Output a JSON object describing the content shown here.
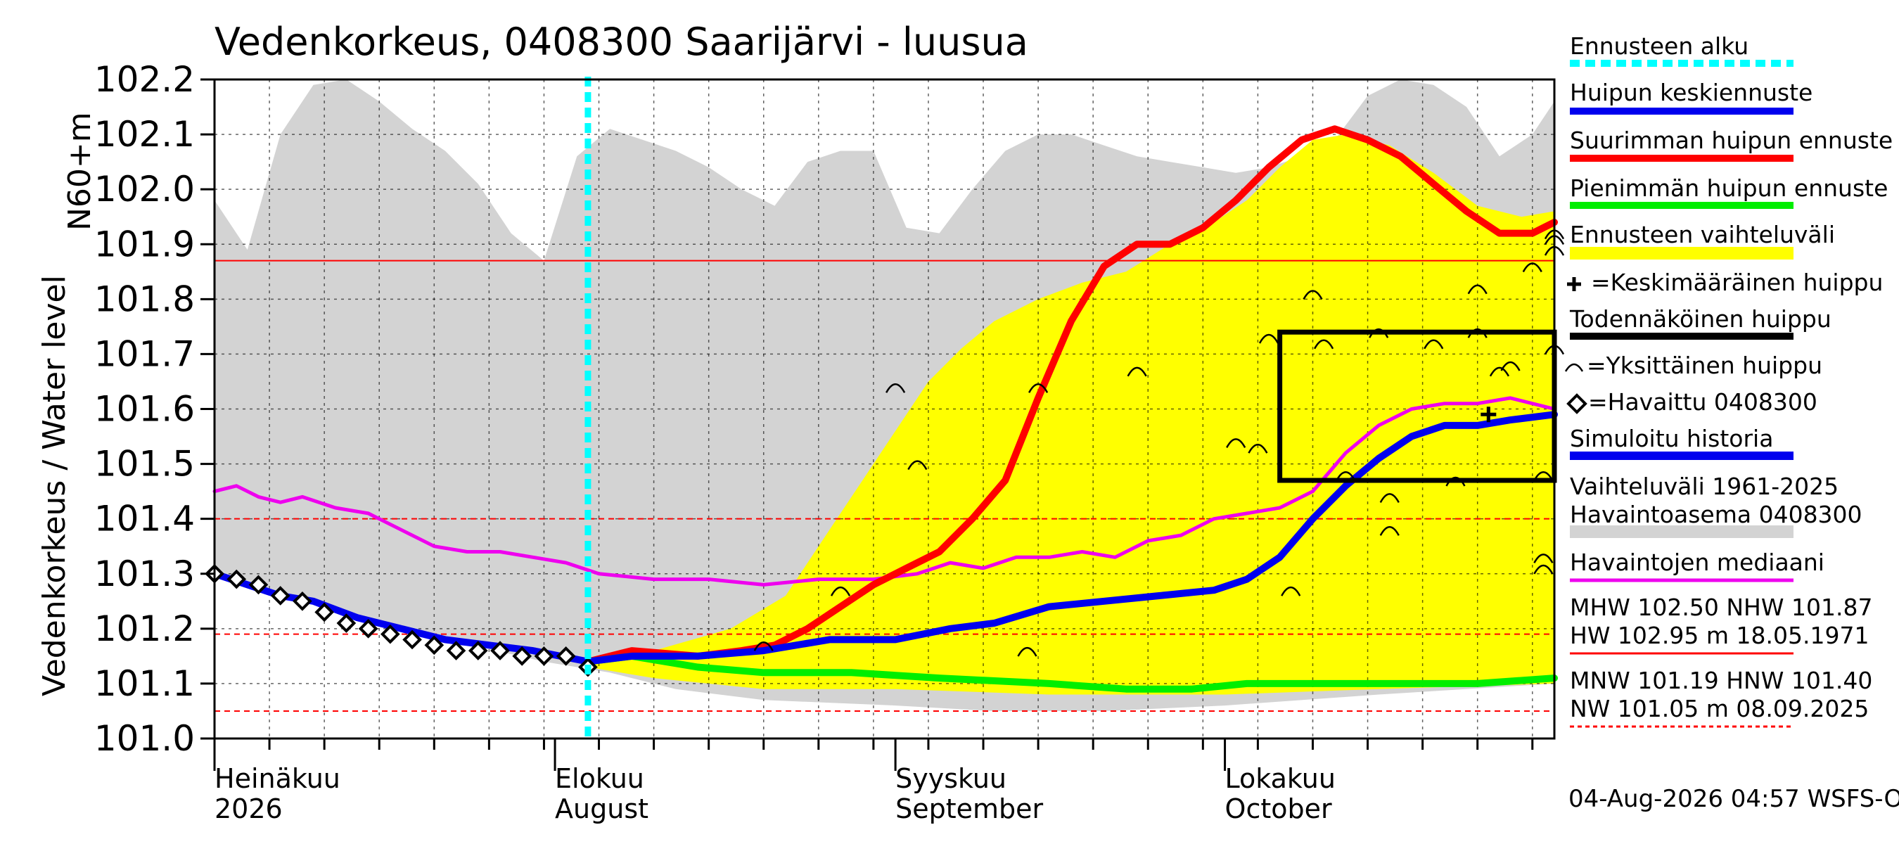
{
  "title": "Vedenkorkeus, 0408300 Saarijärvi - luusua",
  "y_axis_label_1": "N60+m",
  "y_axis_label_2": "Vedenkorkeus / Water level",
  "timestamp": "04-Aug-2026 04:57 WSFS-O",
  "legend": {
    "forecast_start": "Ennusteen alku",
    "peak_mean": "Huipun keskiennuste",
    "peak_max": "Suurimman huipun ennuste",
    "peak_min": "Pienimmän huipun ennuste",
    "forecast_range": "Ennusteen vaihteluväli",
    "mean_peak": "=Keskimääräinen huippu",
    "likely_peak": "Todennäköinen huippu",
    "single_peak": "=Yksittäinen huippu",
    "observed": "=Havaittu 0408300",
    "simulated": "Simuloitu historia",
    "range_1": "Vaihteluväli 1961-2025",
    "range_2": "Havaintoasema 0408300",
    "median": "Havaintojen mediaani",
    "mhw": "MHW 102.50 NHW 101.87",
    "hw": "HW 102.95 m 18.05.1971",
    "mnw": "MNW 101.19 HNW 101.40",
    "nw": "NW 101.05 m 08.09.2025"
  },
  "colors": {
    "forecast_start": "#00ffff",
    "peak_mean": "#0000ee",
    "peak_max": "#ff0000",
    "peak_min": "#00ee00",
    "forecast_range": "#ffff00",
    "historical_range": "#d3d3d3",
    "median": "#ee00ee",
    "threshold": "#ff0000"
  },
  "chart_data": {
    "type": "line",
    "ylim": [
      101.0,
      102.2
    ],
    "yticks": [
      "101.0",
      "101.1",
      "101.2",
      "101.3",
      "101.4",
      "101.5",
      "101.6",
      "101.7",
      "101.8",
      "101.9",
      "102.0",
      "102.1",
      "102.2"
    ],
    "x_start": "2026-07-01",
    "x_end": "2026-10-31",
    "forecast_start": "2026-08-04",
    "month_labels": [
      {
        "date": "2026-07-01",
        "fi": "Heinäkuu",
        "en": "2026"
      },
      {
        "date": "2026-08-01",
        "fi": "Elokuu",
        "en": "August"
      },
      {
        "date": "2026-09-01",
        "fi": "Syyskuu",
        "en": "September"
      },
      {
        "date": "2026-10-01",
        "fi": "Lokakuu",
        "en": "October"
      }
    ],
    "hlines": [
      {
        "y": 101.87,
        "style": "solid"
      },
      {
        "y": 101.4,
        "style": "dashed"
      },
      {
        "y": 101.19,
        "style": "dashed"
      },
      {
        "y": 101.05,
        "style": "dashed"
      }
    ],
    "historical_range": {
      "upper": [
        [
          "2026-07-01",
          101.98
        ],
        [
          "2026-07-04",
          101.89
        ],
        [
          "2026-07-07",
          102.1
        ],
        [
          "2026-07-10",
          102.19
        ],
        [
          "2026-07-13",
          102.2
        ],
        [
          "2026-07-16",
          102.16
        ],
        [
          "2026-07-19",
          102.11
        ],
        [
          "2026-07-22",
          102.07
        ],
        [
          "2026-07-25",
          102.01
        ],
        [
          "2026-07-28",
          101.92
        ],
        [
          "2026-07-31",
          101.87
        ],
        [
          "2026-08-03",
          102.06
        ],
        [
          "2026-08-06",
          102.11
        ],
        [
          "2026-08-09",
          102.09
        ],
        [
          "2026-08-12",
          102.07
        ],
        [
          "2026-08-15",
          102.04
        ],
        [
          "2026-08-18",
          102.0
        ],
        [
          "2026-08-21",
          101.97
        ],
        [
          "2026-08-24",
          102.05
        ],
        [
          "2026-08-27",
          102.07
        ],
        [
          "2026-08-30",
          102.07
        ],
        [
          "2026-09-02",
          101.93
        ],
        [
          "2026-09-05",
          101.92
        ],
        [
          "2026-09-08",
          102.0
        ],
        [
          "2026-09-11",
          102.07
        ],
        [
          "2026-09-14",
          102.1
        ],
        [
          "2026-09-17",
          102.1
        ],
        [
          "2026-09-20",
          102.08
        ],
        [
          "2026-09-23",
          102.06
        ],
        [
          "2026-09-26",
          102.05
        ],
        [
          "2026-09-29",
          102.04
        ],
        [
          "2026-10-02",
          102.03
        ],
        [
          "2026-10-05",
          102.04
        ],
        [
          "2026-10-08",
          102.06
        ],
        [
          "2026-10-11",
          102.09
        ],
        [
          "2026-10-14",
          102.17
        ],
        [
          "2026-10-17",
          102.2
        ],
        [
          "2026-10-20",
          102.19
        ],
        [
          "2026-10-23",
          102.15
        ],
        [
          "2026-10-26",
          102.06
        ],
        [
          "2026-10-29",
          102.1
        ],
        [
          "2026-10-31",
          102.16
        ]
      ],
      "lower": [
        [
          "2026-07-01",
          101.3
        ],
        [
          "2026-07-10",
          101.25
        ],
        [
          "2026-07-20",
          101.19
        ],
        [
          "2026-07-31",
          101.14
        ],
        [
          "2026-08-06",
          101.12
        ],
        [
          "2026-08-12",
          101.09
        ],
        [
          "2026-08-20",
          101.07
        ],
        [
          "2026-09-01",
          101.06
        ],
        [
          "2026-09-10",
          101.05
        ],
        [
          "2026-09-20",
          101.05
        ],
        [
          "2026-10-01",
          101.06
        ],
        [
          "2026-10-15",
          101.08
        ],
        [
          "2026-10-31",
          101.1
        ]
      ]
    },
    "forecast_range": {
      "upper": [
        [
          "2026-08-04",
          101.14
        ],
        [
          "2026-08-10",
          101.16
        ],
        [
          "2026-08-17",
          101.2
        ],
        [
          "2026-08-22",
          101.26
        ],
        [
          "2026-08-26",
          101.38
        ],
        [
          "2026-08-29",
          101.47
        ],
        [
          "2026-09-01",
          101.56
        ],
        [
          "2026-09-04",
          101.65
        ],
        [
          "2026-09-07",
          101.71
        ],
        [
          "2026-09-10",
          101.76
        ],
        [
          "2026-09-14",
          101.8
        ],
        [
          "2026-09-18",
          101.83
        ],
        [
          "2026-09-22",
          101.85
        ],
        [
          "2026-09-26",
          101.9
        ],
        [
          "2026-09-30",
          101.94
        ],
        [
          "2026-10-03",
          101.98
        ],
        [
          "2026-10-06",
          102.04
        ],
        [
          "2026-10-09",
          102.09
        ],
        [
          "2026-10-12",
          102.1
        ],
        [
          "2026-10-16",
          102.08
        ],
        [
          "2026-10-20",
          102.03
        ],
        [
          "2026-10-24",
          101.97
        ],
        [
          "2026-10-28",
          101.95
        ],
        [
          "2026-10-31",
          101.96
        ]
      ],
      "lower": [
        [
          "2026-08-04",
          101.13
        ],
        [
          "2026-08-10",
          101.11
        ],
        [
          "2026-08-20",
          101.09
        ],
        [
          "2026-09-01",
          101.09
        ],
        [
          "2026-09-15",
          101.08
        ],
        [
          "2026-10-01",
          101.08
        ],
        [
          "2026-10-15",
          101.09
        ],
        [
          "2026-10-31",
          101.1
        ]
      ]
    },
    "series": [
      {
        "name": "Havaintojen mediaani",
        "key": "median",
        "values": [
          [
            "2026-07-01",
            101.45
          ],
          [
            "2026-07-03",
            101.46
          ],
          [
            "2026-07-05",
            101.44
          ],
          [
            "2026-07-07",
            101.43
          ],
          [
            "2026-07-09",
            101.44
          ],
          [
            "2026-07-12",
            101.42
          ],
          [
            "2026-07-15",
            101.41
          ],
          [
            "2026-07-18",
            101.38
          ],
          [
            "2026-07-21",
            101.35
          ],
          [
            "2026-07-24",
            101.34
          ],
          [
            "2026-07-27",
            101.34
          ],
          [
            "2026-07-30",
            101.33
          ],
          [
            "2026-08-02",
            101.32
          ],
          [
            "2026-08-05",
            101.3
          ],
          [
            "2026-08-10",
            101.29
          ],
          [
            "2026-08-15",
            101.29
          ],
          [
            "2026-08-20",
            101.28
          ],
          [
            "2026-08-25",
            101.29
          ],
          [
            "2026-08-30",
            101.29
          ],
          [
            "2026-09-03",
            101.3
          ],
          [
            "2026-09-06",
            101.32
          ],
          [
            "2026-09-09",
            101.31
          ],
          [
            "2026-09-12",
            101.33
          ],
          [
            "2026-09-15",
            101.33
          ],
          [
            "2026-09-18",
            101.34
          ],
          [
            "2026-09-21",
            101.33
          ],
          [
            "2026-09-24",
            101.36
          ],
          [
            "2026-09-27",
            101.37
          ],
          [
            "2026-09-30",
            101.4
          ],
          [
            "2026-10-03",
            101.41
          ],
          [
            "2026-10-06",
            101.42
          ],
          [
            "2026-10-09",
            101.45
          ],
          [
            "2026-10-12",
            101.52
          ],
          [
            "2026-10-15",
            101.57
          ],
          [
            "2026-10-18",
            101.6
          ],
          [
            "2026-10-21",
            101.61
          ],
          [
            "2026-10-24",
            101.61
          ],
          [
            "2026-10-27",
            101.62
          ],
          [
            "2026-10-31",
            101.6
          ]
        ]
      },
      {
        "name": "Suurimman huipun ennuste",
        "key": "peak_max",
        "values": [
          [
            "2026-08-04",
            101.14
          ],
          [
            "2026-08-08",
            101.16
          ],
          [
            "2026-08-14",
            101.15
          ],
          [
            "2026-08-18",
            101.16
          ],
          [
            "2026-08-21",
            101.17
          ],
          [
            "2026-08-24",
            101.2
          ],
          [
            "2026-08-27",
            101.24
          ],
          [
            "2026-08-30",
            101.28
          ],
          [
            "2026-09-02",
            101.31
          ],
          [
            "2026-09-05",
            101.34
          ],
          [
            "2026-09-08",
            101.4
          ],
          [
            "2026-09-11",
            101.47
          ],
          [
            "2026-09-14",
            101.62
          ],
          [
            "2026-09-17",
            101.76
          ],
          [
            "2026-09-20",
            101.86
          ],
          [
            "2026-09-23",
            101.9
          ],
          [
            "2026-09-26",
            101.9
          ],
          [
            "2026-09-29",
            101.93
          ],
          [
            "2026-10-02",
            101.98
          ],
          [
            "2026-10-05",
            102.04
          ],
          [
            "2026-10-08",
            102.09
          ],
          [
            "2026-10-11",
            102.11
          ],
          [
            "2026-10-14",
            102.09
          ],
          [
            "2026-10-17",
            102.06
          ],
          [
            "2026-10-20",
            102.01
          ],
          [
            "2026-10-23",
            101.96
          ],
          [
            "2026-10-26",
            101.92
          ],
          [
            "2026-10-29",
            101.92
          ],
          [
            "2026-10-31",
            101.94
          ]
        ]
      },
      {
        "name": "Pienimmän huipun ennuste",
        "key": "peak_min",
        "values": [
          [
            "2026-08-04",
            101.14
          ],
          [
            "2026-08-08",
            101.15
          ],
          [
            "2026-08-14",
            101.13
          ],
          [
            "2026-08-20",
            101.12
          ],
          [
            "2026-08-28",
            101.12
          ],
          [
            "2026-09-05",
            101.11
          ],
          [
            "2026-09-15",
            101.1
          ],
          [
            "2026-09-22",
            101.09
          ],
          [
            "2026-09-28",
            101.09
          ],
          [
            "2026-10-03",
            101.1
          ],
          [
            "2026-10-10",
            101.1
          ],
          [
            "2026-10-17",
            101.1
          ],
          [
            "2026-10-24",
            101.1
          ],
          [
            "2026-10-31",
            101.11
          ]
        ]
      },
      {
        "name": "Huipun keskiennuste",
        "key": "peak_mean",
        "values": [
          [
            "2026-07-01",
            101.3
          ],
          [
            "2026-07-04",
            101.28
          ],
          [
            "2026-07-07",
            101.26
          ],
          [
            "2026-07-10",
            101.25
          ],
          [
            "2026-07-14",
            101.22
          ],
          [
            "2026-07-18",
            101.2
          ],
          [
            "2026-07-22",
            101.18
          ],
          [
            "2026-07-26",
            101.17
          ],
          [
            "2026-07-30",
            101.16
          ],
          [
            "2026-08-04",
            101.14
          ],
          [
            "2026-08-08",
            101.15
          ],
          [
            "2026-08-14",
            101.15
          ],
          [
            "2026-08-20",
            101.16
          ],
          [
            "2026-08-26",
            101.18
          ],
          [
            "2026-09-01",
            101.18
          ],
          [
            "2026-09-06",
            101.2
          ],
          [
            "2026-09-10",
            101.21
          ],
          [
            "2026-09-15",
            101.24
          ],
          [
            "2026-09-20",
            101.25
          ],
          [
            "2026-09-25",
            101.26
          ],
          [
            "2026-09-30",
            101.27
          ],
          [
            "2026-10-03",
            101.29
          ],
          [
            "2026-10-06",
            101.33
          ],
          [
            "2026-10-09",
            101.4
          ],
          [
            "2026-10-12",
            101.46
          ],
          [
            "2026-10-15",
            101.51
          ],
          [
            "2026-10-18",
            101.55
          ],
          [
            "2026-10-21",
            101.57
          ],
          [
            "2026-10-24",
            101.57
          ],
          [
            "2026-10-27",
            101.58
          ],
          [
            "2026-10-31",
            101.59
          ]
        ]
      }
    ],
    "observed": [
      [
        "2026-07-01",
        101.3
      ],
      [
        "2026-07-03",
        101.29
      ],
      [
        "2026-07-05",
        101.28
      ],
      [
        "2026-07-07",
        101.26
      ],
      [
        "2026-07-09",
        101.25
      ],
      [
        "2026-07-11",
        101.23
      ],
      [
        "2026-07-13",
        101.21
      ],
      [
        "2026-07-15",
        101.2
      ],
      [
        "2026-07-17",
        101.19
      ],
      [
        "2026-07-19",
        101.18
      ],
      [
        "2026-07-21",
        101.17
      ],
      [
        "2026-07-23",
        101.16
      ],
      [
        "2026-07-25",
        101.16
      ],
      [
        "2026-07-27",
        101.16
      ],
      [
        "2026-07-29",
        101.15
      ],
      [
        "2026-07-31",
        101.15
      ],
      [
        "2026-08-02",
        101.15
      ],
      [
        "2026-08-04",
        101.13
      ]
    ],
    "likely_peak_box": {
      "x1": "2026-10-06",
      "x2": "2026-10-31",
      "y1": 101.47,
      "y2": 101.74
    },
    "mean_peak": {
      "x": "2026-10-25",
      "y": 101.59
    },
    "single_peaks": [
      [
        "2026-08-27",
        101.27
      ],
      [
        "2026-09-01",
        101.64
      ],
      [
        "2026-09-03",
        101.5
      ],
      [
        "2026-09-14",
        101.64
      ],
      [
        "2026-09-23",
        101.67
      ],
      [
        "2026-10-02",
        101.54
      ],
      [
        "2026-10-04",
        101.53
      ],
      [
        "2026-10-05",
        101.73
      ],
      [
        "2026-10-07",
        101.27
      ],
      [
        "2026-10-09",
        101.81
      ],
      [
        "2026-10-10",
        101.72
      ],
      [
        "2026-10-12",
        101.48
      ],
      [
        "2026-10-15",
        101.74
      ],
      [
        "2026-10-16",
        101.44
      ],
      [
        "2026-10-16",
        101.38
      ],
      [
        "2026-10-20",
        101.72
      ],
      [
        "2026-10-22",
        101.47
      ],
      [
        "2026-10-24",
        101.74
      ],
      [
        "2026-10-24",
        101.82
      ],
      [
        "2026-10-26",
        101.67
      ],
      [
        "2026-10-27",
        101.68
      ],
      [
        "2026-10-29",
        101.86
      ],
      [
        "2026-10-30",
        101.48
      ],
      [
        "2026-10-31",
        101.71
      ],
      [
        "2026-09-13",
        101.16
      ],
      [
        "2026-08-20",
        101.17
      ],
      [
        "2026-10-31",
        101.92
      ],
      [
        "2026-10-31",
        101.89
      ],
      [
        "2026-10-31",
        101.91
      ],
      [
        "2026-10-30",
        101.33
      ],
      [
        "2026-10-30",
        101.31
      ]
    ]
  }
}
